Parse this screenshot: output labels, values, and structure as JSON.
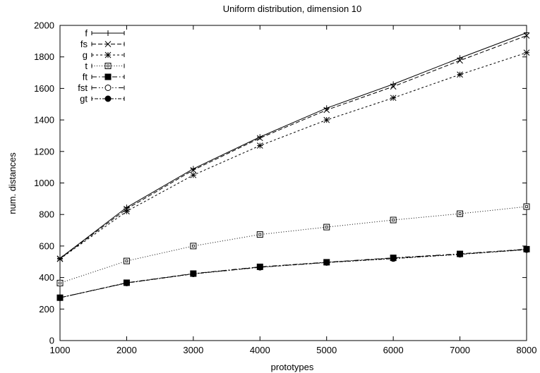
{
  "chart_data": {
    "type": "line",
    "title": "Uniform distribution, dimension 10",
    "xlabel": "prototypes",
    "ylabel": "num. distances",
    "xlim": [
      1000,
      8000
    ],
    "ylim": [
      0,
      2000
    ],
    "xticks": [
      1000,
      2000,
      3000,
      4000,
      5000,
      6000,
      7000,
      8000
    ],
    "yticks": [
      0,
      200,
      400,
      600,
      800,
      1000,
      1200,
      1400,
      1600,
      1800,
      2000
    ],
    "grid": false,
    "legend_position": "top-left",
    "x": [
      1000,
      2000,
      3000,
      4000,
      5000,
      6000,
      7000,
      8000
    ],
    "series": [
      {
        "name": "f",
        "marker": "plus",
        "dash": "solid",
        "values": [
          522,
          845,
          1090,
          1292,
          1475,
          1627,
          1793,
          1953
        ]
      },
      {
        "name": "fs",
        "marker": "cross",
        "dash": "dashed",
        "values": [
          520,
          835,
          1082,
          1285,
          1463,
          1612,
          1777,
          1935
        ]
      },
      {
        "name": "g",
        "marker": "star",
        "dash": "shortdash",
        "values": [
          518,
          820,
          1050,
          1237,
          1400,
          1540,
          1688,
          1827
        ]
      },
      {
        "name": "t",
        "marker": "square-open",
        "dash": "dotted",
        "values": [
          365,
          505,
          600,
          673,
          720,
          765,
          805,
          850
        ]
      },
      {
        "name": "ft",
        "marker": "square-filled",
        "dash": "dashdot",
        "values": [
          272,
          367,
          425,
          468,
          497,
          525,
          550,
          580
        ]
      },
      {
        "name": "fst",
        "marker": "circle-open",
        "dash": "dashdotdot",
        "values": [
          272,
          366,
          424,
          466,
          496,
          523,
          549,
          578
        ]
      },
      {
        "name": "gt",
        "marker": "circle-filled",
        "dash": "dotdash",
        "values": [
          272,
          365,
          423,
          465,
          495,
          520,
          547,
          577
        ]
      }
    ]
  }
}
